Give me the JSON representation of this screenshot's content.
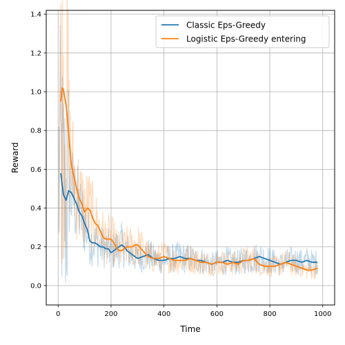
{
  "chart_data": {
    "type": "line",
    "title": "",
    "xlabel": "Time",
    "ylabel": "Reward",
    "xlim": [
      -45,
      1045
    ],
    "ylim": [
      -0.1,
      1.42
    ],
    "xticks": [
      0,
      200,
      400,
      600,
      800,
      1000
    ],
    "yticks": [
      0.0,
      0.2,
      0.4,
      0.6,
      0.8,
      1.0,
      1.2,
      1.4
    ],
    "xtick_labels": [
      "0",
      "200",
      "400",
      "600",
      "800",
      "1000"
    ],
    "ytick_labels": [
      "0.0",
      "0.2",
      "0.4",
      "0.6",
      "0.8",
      "1.0",
      "1.2",
      "1.4"
    ],
    "grid": true,
    "legend_position": "top-right",
    "series": [
      {
        "name": "Classic Eps-Greedy",
        "color": "#1f77b4",
        "x": [
          10,
          20,
          30,
          40,
          50,
          60,
          70,
          80,
          90,
          100,
          110,
          120,
          130,
          140,
          150,
          160,
          170,
          180,
          190,
          200,
          210,
          220,
          230,
          240,
          250,
          260,
          270,
          280,
          290,
          300,
          320,
          340,
          360,
          380,
          400,
          420,
          440,
          460,
          480,
          500,
          520,
          540,
          560,
          580,
          600,
          620,
          640,
          660,
          680,
          700,
          720,
          740,
          760,
          780,
          800,
          820,
          840,
          860,
          880,
          900,
          920,
          940,
          960,
          980
        ],
        "values": [
          0.58,
          0.47,
          0.44,
          0.49,
          0.48,
          0.45,
          0.42,
          0.38,
          0.36,
          0.32,
          0.29,
          0.23,
          0.22,
          0.22,
          0.21,
          0.2,
          0.2,
          0.19,
          0.19,
          0.17,
          0.18,
          0.19,
          0.2,
          0.21,
          0.2,
          0.18,
          0.17,
          0.16,
          0.15,
          0.14,
          0.15,
          0.16,
          0.14,
          0.13,
          0.13,
          0.14,
          0.14,
          0.15,
          0.14,
          0.14,
          0.13,
          0.13,
          0.12,
          0.11,
          0.12,
          0.12,
          0.13,
          0.12,
          0.12,
          0.13,
          0.13,
          0.14,
          0.15,
          0.14,
          0.13,
          0.12,
          0.11,
          0.12,
          0.13,
          0.13,
          0.12,
          0.13,
          0.12,
          0.12
        ]
      },
      {
        "name": "Logistic Eps-Greedy entering",
        "color": "#ff7f0e",
        "x": [
          10,
          15,
          20,
          30,
          40,
          50,
          60,
          70,
          80,
          90,
          100,
          110,
          120,
          130,
          140,
          150,
          160,
          170,
          180,
          190,
          200,
          210,
          220,
          230,
          240,
          250,
          260,
          270,
          280,
          290,
          300,
          320,
          340,
          360,
          380,
          400,
          420,
          440,
          460,
          480,
          500,
          520,
          540,
          560,
          580,
          600,
          620,
          640,
          660,
          680,
          700,
          720,
          740,
          760,
          780,
          800,
          820,
          840,
          860,
          880,
          900,
          920,
          940,
          960,
          980
        ],
        "values": [
          0.95,
          1.02,
          1.01,
          0.93,
          0.78,
          0.62,
          0.56,
          0.5,
          0.45,
          0.42,
          0.38,
          0.4,
          0.39,
          0.35,
          0.32,
          0.31,
          0.28,
          0.25,
          0.24,
          0.24,
          0.24,
          0.22,
          0.2,
          0.18,
          0.18,
          0.19,
          0.2,
          0.2,
          0.2,
          0.21,
          0.21,
          0.18,
          0.15,
          0.14,
          0.14,
          0.15,
          0.14,
          0.13,
          0.13,
          0.13,
          0.14,
          0.13,
          0.12,
          0.12,
          0.11,
          0.12,
          0.12,
          0.11,
          0.12,
          0.11,
          0.13,
          0.13,
          0.14,
          0.11,
          0.1,
          0.1,
          0.1,
          0.11,
          0.12,
          0.11,
          0.1,
          0.09,
          0.08,
          0.08,
          0.09
        ]
      }
    ]
  }
}
